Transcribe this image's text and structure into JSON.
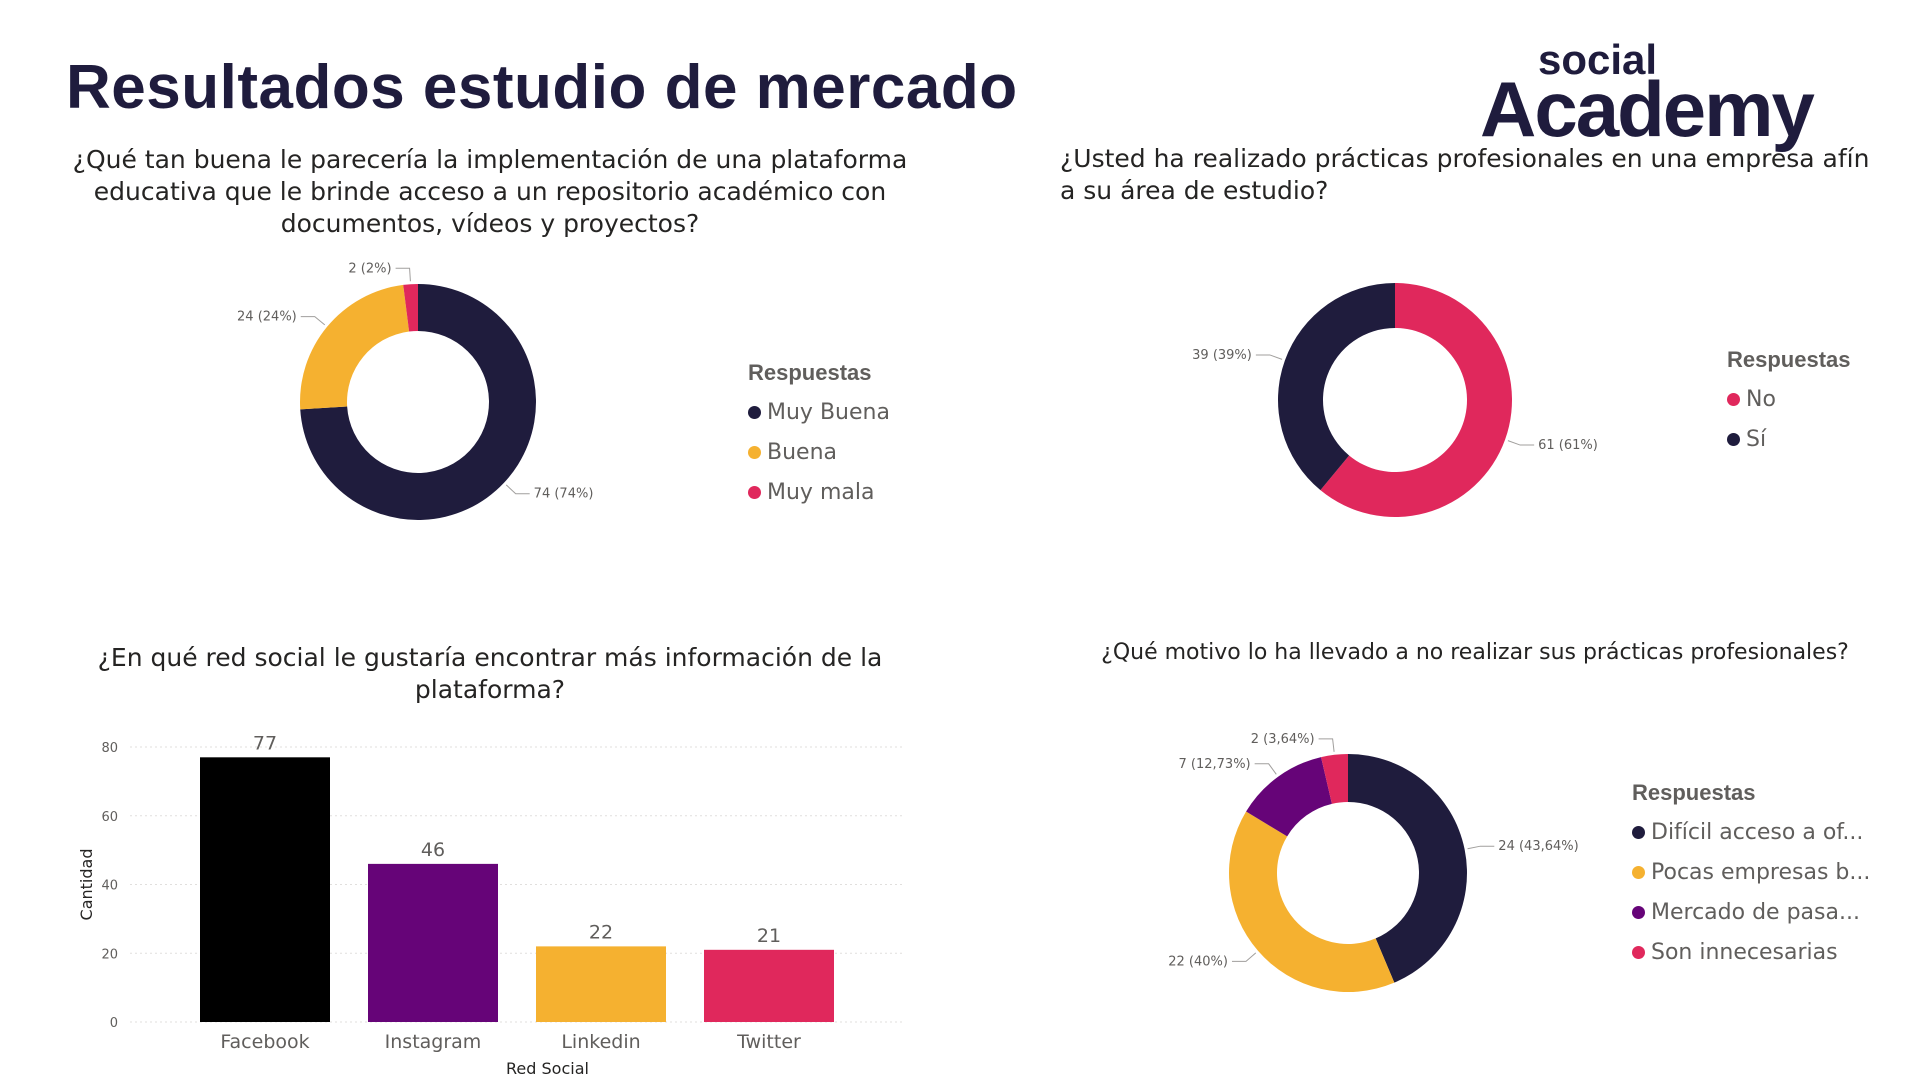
{
  "header": {
    "title": "Resultados estudio de mercado",
    "logo_top": "social",
    "logo_bottom": "Academy"
  },
  "colors": {
    "navy": "#1f1c3d",
    "yellow": "#f5b130",
    "pink": "#e0285c",
    "purple": "#660478",
    "black": "#000000"
  },
  "chart_data": [
    {
      "type": "pie",
      "title": "¿Qué tan buena le parecería la implementación de una plataforma educativa que le brinde acceso a un repositorio académico con documentos, vídeos y proyectos?",
      "legend_title": "Respuestas",
      "legend_position": "right",
      "categories": [
        "Muy Buena",
        "Buena",
        "Muy mala"
      ],
      "values": [
        74,
        24,
        2
      ],
      "labels": [
        "74 (74%)",
        "24 (24%)",
        "2 (2%)"
      ],
      "colors": [
        "#1f1c3d",
        "#f5b130",
        "#e0285c"
      ]
    },
    {
      "type": "pie",
      "title": "¿Usted ha realizado prácticas profesionales en una empresa afín a su área de estudio?",
      "legend_title": "Respuestas",
      "legend_position": "right",
      "categories": [
        "No",
        "Sí"
      ],
      "values": [
        61,
        39
      ],
      "labels": [
        "61 (61%)",
        "39 (39%)"
      ],
      "colors": [
        "#e0285c",
        "#1f1c3d"
      ]
    },
    {
      "type": "bar",
      "title": "¿En qué red social le gustaría encontrar más información de la plataforma?",
      "categories": [
        "Facebook",
        "Instagram",
        "Linkedin",
        "Twitter"
      ],
      "values": [
        77,
        46,
        22,
        21
      ],
      "colors": [
        "#000000",
        "#660478",
        "#f5b130",
        "#e0285c"
      ],
      "xlabel": "Red Social",
      "ylabel": "Cantidad",
      "ylim": [
        0,
        80
      ],
      "yticks": [
        0,
        20,
        40,
        60,
        80
      ],
      "grid": true
    },
    {
      "type": "pie",
      "title": "¿Qué motivo lo ha llevado a no realizar sus prácticas profesionales?",
      "legend_title": "Respuestas",
      "legend_position": "right",
      "categories": [
        "Difícil acceso a of...",
        "Pocas empresas b...",
        "Mercado de pasa...",
        "Son innecesarias"
      ],
      "values": [
        24,
        22,
        7,
        2
      ],
      "labels": [
        "24 (43,64%)",
        "22 (40%)",
        "7 (12,73%)",
        "2 (3,64%)"
      ],
      "colors": [
        "#1f1c3d",
        "#f5b130",
        "#660478",
        "#e0285c"
      ]
    }
  ]
}
